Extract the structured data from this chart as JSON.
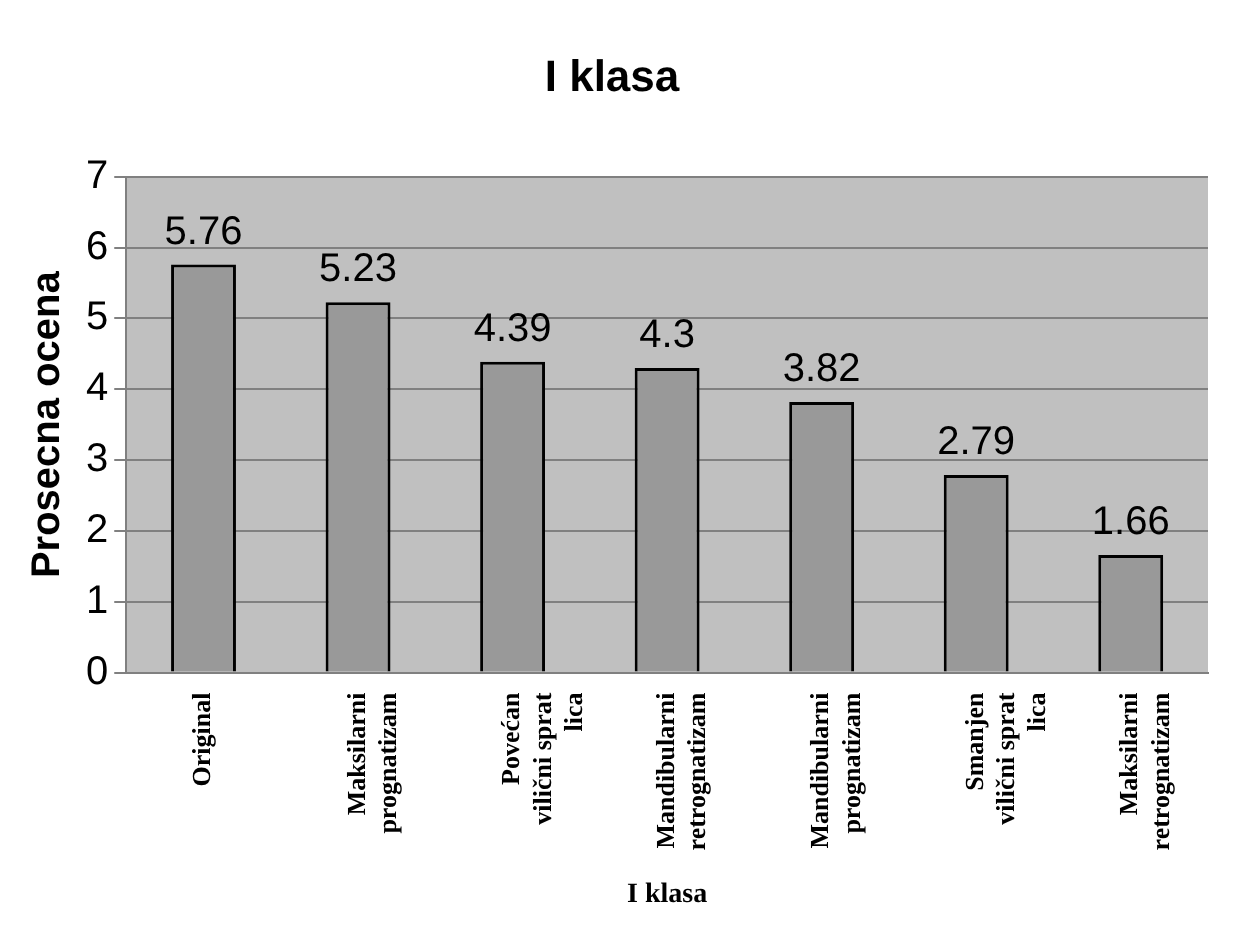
{
  "chart_data": {
    "type": "bar",
    "title": "I klasa",
    "xlabel": "I klasa",
    "ylabel": "Prosecna ocena",
    "categories": [
      "Original",
      "Maksilarni prognatizam",
      "Povećan vilični sprat lica",
      "Mandibularni retrognatizam",
      "Mandibularni prognatizam",
      "Smanjen vilični sprat lica",
      "Maksilarni retrognatizam"
    ],
    "values": [
      5.76,
      5.23,
      4.39,
      4.3,
      3.82,
      2.79,
      1.66
    ],
    "color": "#999999",
    "ylim": [
      0,
      7
    ],
    "yticks": [
      0,
      1,
      2,
      3,
      4,
      5,
      6,
      7
    ],
    "grid": "y",
    "data_labels": true,
    "legend": false
  }
}
